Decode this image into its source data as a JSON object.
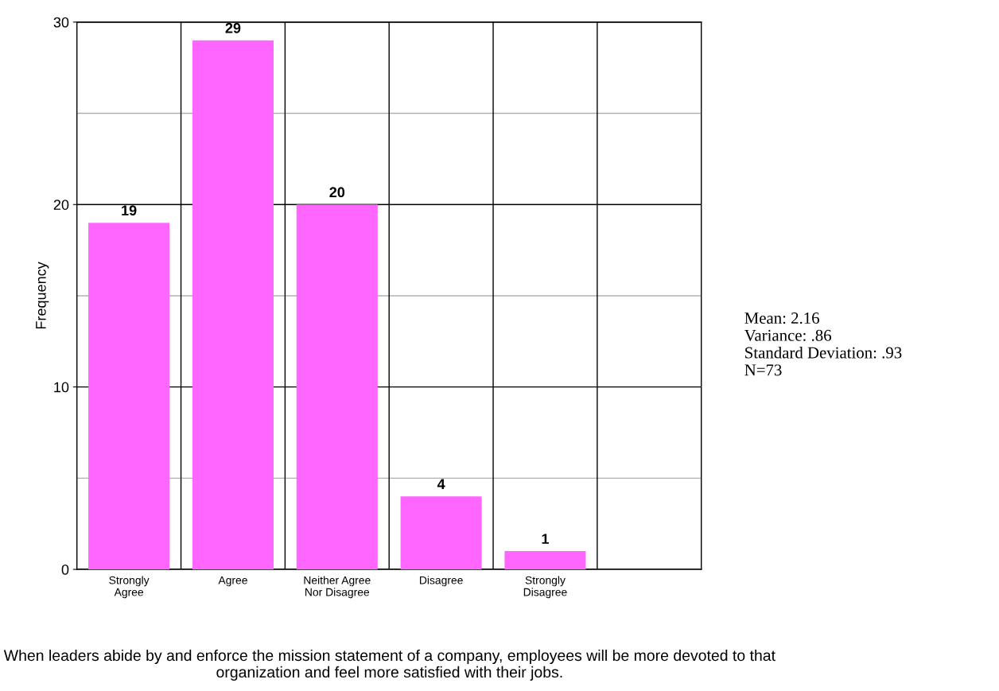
{
  "chart_data": {
    "type": "bar",
    "categories": [
      "Strongly\nAgree",
      "Agree",
      "Neither Agree\nNor Disagree",
      "Disagree",
      "Strongly\nDisagree",
      null
    ],
    "values": [
      19,
      29,
      20,
      4,
      1,
      null
    ],
    "color": "#ff66ff",
    "ylabel": "Frequency",
    "xlabel": "When leaders abide by and enforce the mission statement of a company, employees will be more devoted to that organization and feel more satisfied with their jobs.",
    "ylim": [
      0,
      30
    ],
    "yticks": [
      0,
      {
        "value": 5,
        "label": null
      },
      10,
      {
        "value": 15,
        "label": null
      },
      20,
      {
        "value": 25,
        "label": null
      },
      30
    ],
    "grid": true,
    "data_labels": true,
    "annotations": [
      "Mean: 2.16\nVariance: .86\nStandard Deviation: .93\nN=73"
    ]
  }
}
